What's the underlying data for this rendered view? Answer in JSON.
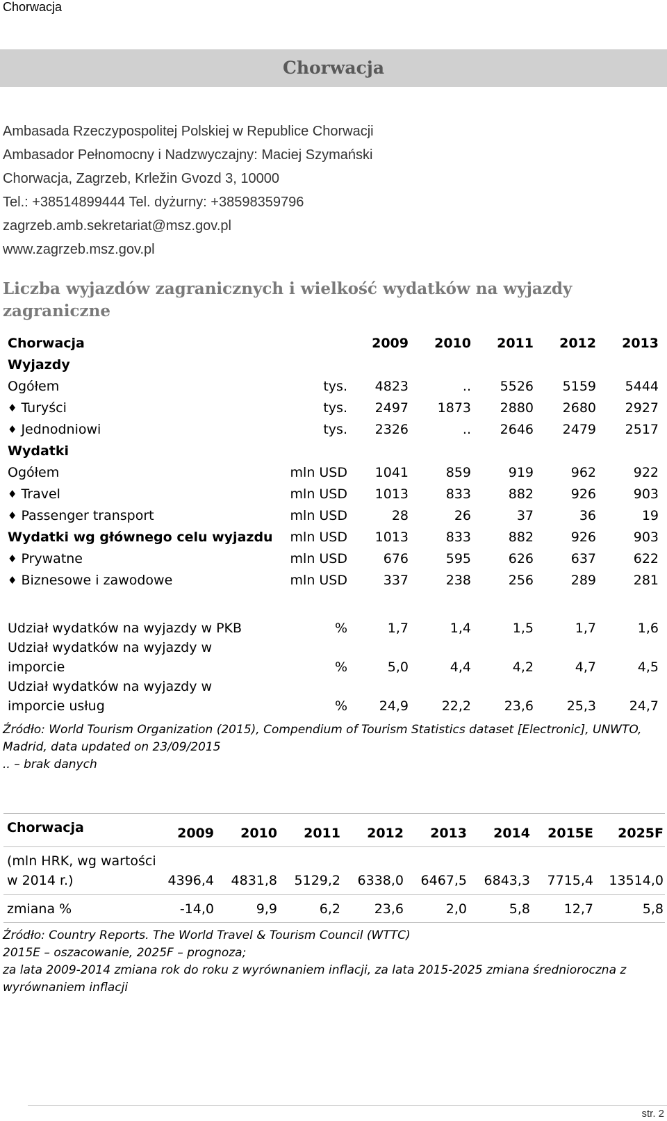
{
  "doc_label": "Chorwacja",
  "banner_title": "Chorwacja",
  "contact": [
    "Ambasada Rzeczypospolitej Polskiej w Republice Chorwacji",
    "Ambasador Pełnomocny i Nadzwyczajny: Maciej Szymański",
    "Chorwacja, Zagrzeb, Krležin Gvozd 3, 10000",
    "Tel.: +38514899444 Tel. dyżurny: +38598359796",
    "zagrzeb.amb.sekretariat@msz.gov.pl",
    "www.zagrzeb.msz.gov.pl"
  ],
  "section_heading": "Liczba wyjazdów zagranicznych i wielkość wydatków na wyjazdy zagraniczne",
  "table1": {
    "header_label": "Chorwacja",
    "years": [
      "2009",
      "2010",
      "2011",
      "2012",
      "2013"
    ],
    "group_wyjazdy": "Wyjazdy",
    "group_wydatki": "Wydatki",
    "bullet": "♦",
    "rows_wyjazdy": [
      {
        "label": "Ogółem",
        "unit": "tys.",
        "values": [
          "4823",
          "..",
          "5526",
          "5159",
          "5444"
        ]
      },
      {
        "label": "Turyści",
        "unit": "tys.",
        "values": [
          "2497",
          "1873",
          "2880",
          "2680",
          "2927"
        ]
      },
      {
        "label": "Jednodniowi",
        "unit": "tys.",
        "values": [
          "2326",
          "..",
          "2646",
          "2479",
          "2517"
        ]
      }
    ],
    "rows_wydatki": [
      {
        "label": "Ogółem",
        "unit": "mln USD",
        "values": [
          "1041",
          "859",
          "919",
          "962",
          "922"
        ]
      },
      {
        "label": "Travel",
        "unit": "mln USD",
        "values": [
          "1013",
          "833",
          "882",
          "926",
          "903"
        ]
      },
      {
        "label": "Passenger transport",
        "unit": "mln USD",
        "values": [
          "28",
          "26",
          "37",
          "36",
          "19"
        ]
      },
      {
        "label": "Wydatki wg głównego celu wyjazdu",
        "unit": "mln USD",
        "values": [
          "1013",
          "833",
          "882",
          "926",
          "903"
        ]
      },
      {
        "label": "Prywatne",
        "unit": "mln USD",
        "values": [
          "676",
          "595",
          "626",
          "637",
          "622"
        ]
      },
      {
        "label": "Biznesowe i zawodowe",
        "unit": "mln USD",
        "values": [
          "337",
          "238",
          "256",
          "289",
          "281"
        ]
      }
    ],
    "share_rows": [
      {
        "label_lines": [
          "Udział wydatków na wyjazdy w PKB"
        ],
        "unit": "%",
        "values": [
          "1,7",
          "1,4",
          "1,5",
          "1,7",
          "1,6"
        ]
      },
      {
        "label_lines": [
          "Udział wydatków na wyjazdy w",
          "imporcie"
        ],
        "unit": "%",
        "values": [
          "5,0",
          "4,4",
          "4,2",
          "4,7",
          "4,5"
        ]
      },
      {
        "label_lines": [
          "Udział wydatków na wyjazdy w",
          "imporcie usług"
        ],
        "unit": "%",
        "values": [
          "24,9",
          "22,2",
          "23,6",
          "25,3",
          "24,7"
        ]
      }
    ]
  },
  "note1": "Źródło: World Tourism Organization (2015), Compendium of Tourism Statistics dataset [Electronic], UNWTO, Madrid, data updated on 23/09/2015",
  "note1b": ".. – brak danych",
  "table2": {
    "header_label": "Chorwacja",
    "years": [
      "2009",
      "2010",
      "2011",
      "2012",
      "2013",
      "2014",
      "2015E",
      "2025F"
    ],
    "row1_label_lines": [
      "(mln HRK, wg wartości",
      "w 2014 r.)"
    ],
    "row1_values": [
      "4396,4",
      "4831,8",
      "5129,2",
      "6338,0",
      "6467,5",
      "6843,3",
      "7715,4",
      "13514,0"
    ],
    "row2_label": "zmiana %",
    "row2_values": [
      "-14,0",
      "9,9",
      "6,2",
      "23,6",
      "2,0",
      "5,8",
      "12,7",
      "5,8"
    ]
  },
  "note2": [
    "Źródło: Country Reports. The World Travel & Tourism Council (WTTC)",
    "2015E – oszacowanie, 2025F – prognoza;",
    "za lata 2009-2014 zmiana rok do roku z wyrównaniem inflacji, za lata 2015-2025 zmiana średnioroczna z wyrównaniem inflacji"
  ],
  "page_number": "str. 2"
}
